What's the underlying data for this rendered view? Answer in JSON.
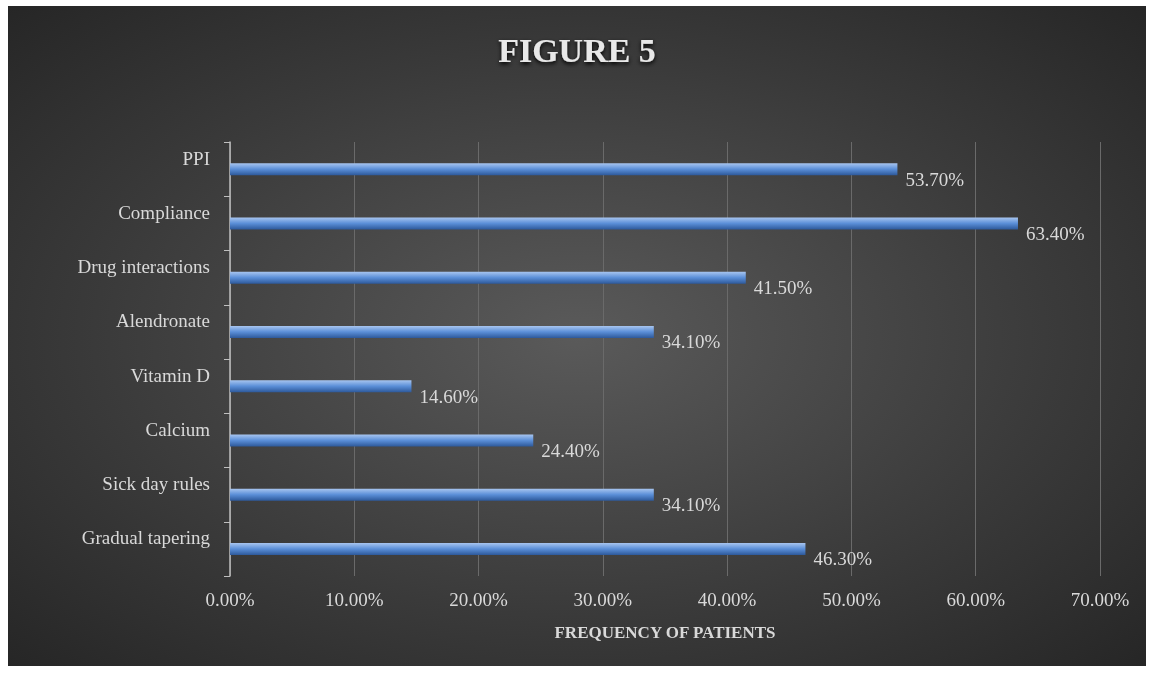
{
  "chart_data": {
    "type": "bar",
    "orientation": "horizontal",
    "title": "FIGURE 5",
    "xlabel": "FREQUENCY OF PATIENTS",
    "categories": [
      "PPI",
      "Compliance",
      "Drug interactions",
      "Alendronate",
      "Vitamin D",
      "Calcium",
      "Sick day rules",
      "Gradual tapering"
    ],
    "values": [
      53.7,
      63.4,
      41.5,
      34.1,
      14.6,
      24.4,
      34.1,
      46.3
    ],
    "value_labels": [
      "53.70%",
      "63.40%",
      "41.50%",
      "34.10%",
      "14.60%",
      "24.40%",
      "34.10%",
      "46.30%"
    ],
    "color": "#5b8fd8",
    "xlim": [
      0,
      70
    ],
    "xticks": [
      {
        "value": 0,
        "label": "0.00%"
      },
      {
        "value": 10,
        "label": "10.00%"
      },
      {
        "value": 20,
        "label": "20.00%"
      },
      {
        "value": 30,
        "label": "30.00%"
      },
      {
        "value": 40,
        "label": "40.00%"
      },
      {
        "value": 50,
        "label": "50.00%"
      },
      {
        "value": 60,
        "label": "60.00%"
      },
      {
        "value": 70,
        "label": "70.00%"
      }
    ],
    "grid": "x"
  }
}
